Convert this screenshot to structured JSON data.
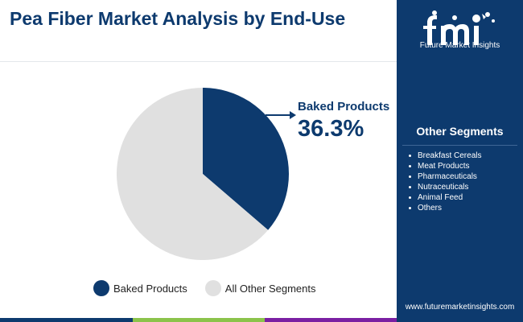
{
  "title": "Pea Fiber Market Analysis by End-Use",
  "chart_data": {
    "type": "pie",
    "slices": [
      {
        "label": "Baked Products",
        "value": 36.3,
        "color": "#0d3a6e"
      },
      {
        "label": "All Other Segments",
        "value": 63.7,
        "color": "#e0e0e0"
      }
    ],
    "annotation": {
      "label": "Baked Products",
      "value_text": "36.3%"
    },
    "legend": [
      "Baked Products",
      "All Other Segments"
    ],
    "legend_position": "bottom"
  },
  "sidebar": {
    "brand": "Future Market Insights",
    "segments_title": "Other Segments",
    "segments": [
      "Breakfast Cereals",
      "Meat Products",
      "Pharmaceuticals",
      "Nutraceuticals",
      "Animal Feed",
      "Others"
    ],
    "website": "www.futuremarketinsights.com"
  },
  "colors": {
    "primary": "#0d3a6e",
    "light": "#e0e0e0",
    "bar": [
      "#0d3a6e",
      "#8bc34a",
      "#7b1fa2",
      "#0d3a6e"
    ]
  }
}
